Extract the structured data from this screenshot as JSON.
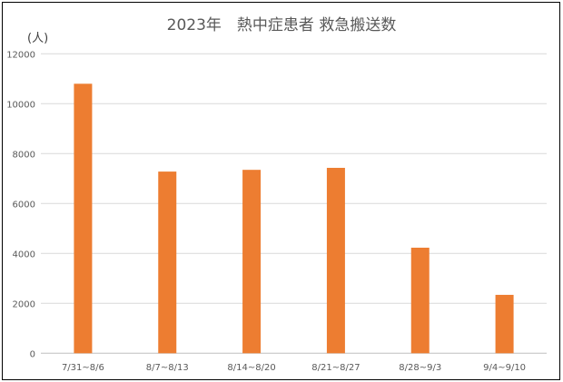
{
  "chart_data": {
    "type": "bar",
    "title": "2023年　熱中症患者 救急搬送数",
    "ylabel": "(人)",
    "xlabel": "",
    "categories": [
      "7/31~8/6",
      "8/7~8/13",
      "8/14~8/20",
      "8/21~8/27",
      "8/28~9/3",
      "9/4~9/10"
    ],
    "values": [
      10800,
      7280,
      7350,
      7430,
      4230,
      2340
    ],
    "ylim": [
      0,
      12000
    ],
    "yticks": [
      0,
      2000,
      4000,
      6000,
      8000,
      10000,
      12000
    ],
    "grid": true,
    "legend": "none",
    "bar_color": "#ED7D31",
    "grid_color": "#D9D9D9"
  }
}
